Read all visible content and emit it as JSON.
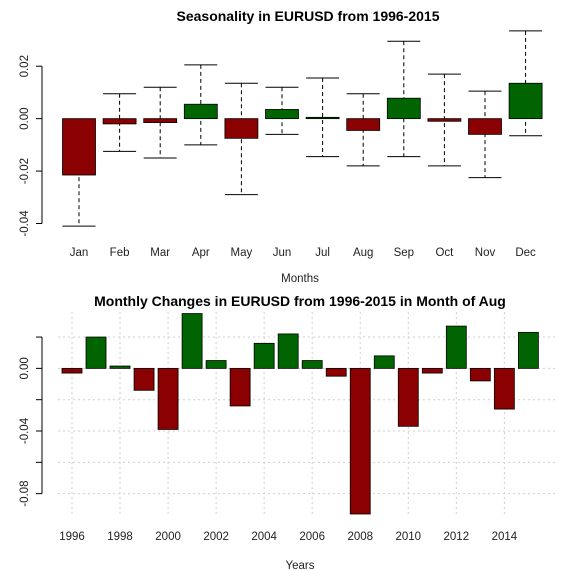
{
  "colors": {
    "positive": "#006400",
    "negative": "#8b0000",
    "grid": "#cfcfcf"
  },
  "chart_data": [
    {
      "type": "bar",
      "title": "Seasonality in EURUSD from 1996-2015",
      "xlabel": "Months",
      "ylabel": "",
      "categories": [
        "Jan",
        "Feb",
        "Mar",
        "Apr",
        "May",
        "Jun",
        "Jul",
        "Aug",
        "Sep",
        "Oct",
        "Nov",
        "Dec"
      ],
      "values": [
        -0.0215,
        -0.002,
        -0.0015,
        0.0055,
        -0.0075,
        0.0035,
        0.0005,
        -0.0045,
        0.0078,
        -0.001,
        -0.006,
        0.0135
      ],
      "error_upper": [
        -0.001,
        0.0095,
        0.012,
        0.0205,
        0.0135,
        0.012,
        0.0155,
        0.0095,
        0.0295,
        0.017,
        0.0105,
        0.0335
      ],
      "error_lower": [
        -0.041,
        -0.0125,
        -0.015,
        -0.01,
        -0.029,
        -0.006,
        -0.0145,
        -0.018,
        -0.0145,
        -0.018,
        -0.0225,
        -0.0065
      ],
      "ylim": [
        -0.044,
        0.03
      ],
      "yticks": [
        -0.04,
        -0.02,
        0.0,
        0.02
      ],
      "ytick_labels": [
        "-0.04",
        "-0.02",
        "0.00",
        "0.02"
      ],
      "grid": false
    },
    {
      "type": "bar",
      "title": "Monthly Changes in EURUSD from 1996-2015 in Month of Aug",
      "xlabel": "Years",
      "ylabel": "",
      "x": [
        1996,
        1997,
        1998,
        1999,
        2000,
        2001,
        2002,
        2003,
        2004,
        2005,
        2006,
        2007,
        2008,
        2009,
        2010,
        2011,
        2012,
        2013,
        2014,
        2015
      ],
      "values": [
        -0.003,
        0.02,
        0.0015,
        -0.014,
        -0.039,
        0.035,
        0.005,
        -0.024,
        0.016,
        0.022,
        0.005,
        -0.005,
        -0.093,
        0.008,
        -0.037,
        -0.003,
        0.027,
        -0.008,
        -0.026,
        0.023
      ],
      "xticks": [
        1996,
        1998,
        2000,
        2002,
        2004,
        2006,
        2008,
        2010,
        2012,
        2014
      ],
      "xtick_labels": [
        "1996",
        "1998",
        "2000",
        "2002",
        "2004",
        "2006",
        "2008",
        "2010",
        "2012",
        "2014"
      ],
      "ylim": [
        -0.093,
        0.036
      ],
      "yticks": [
        -0.08,
        -0.04,
        0.0
      ],
      "ytick_labels": [
        "-0.08",
        "-0.04",
        "0.00"
      ],
      "grid": true
    }
  ]
}
